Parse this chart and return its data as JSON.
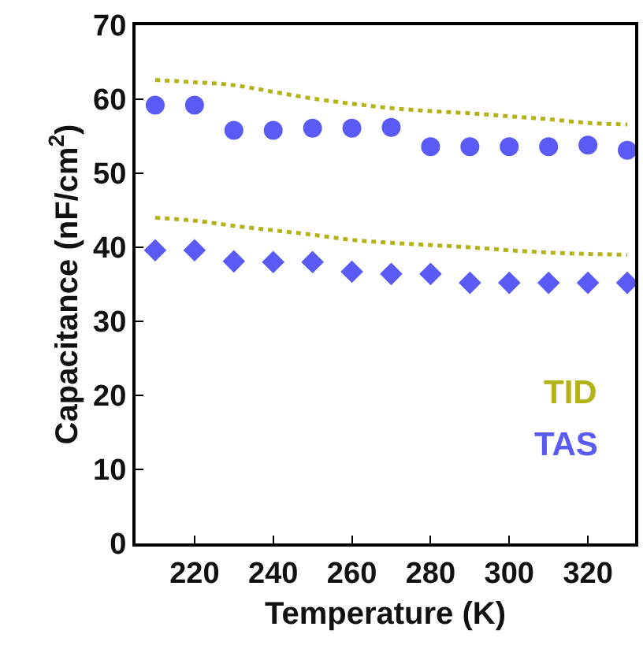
{
  "chart_data": {
    "type": "scatter",
    "xlabel": "Temperature (K)",
    "ylabel": "Capacitance (nF/cm$^{2}$)",
    "x": [
      210,
      220,
      230,
      240,
      250,
      260,
      270,
      280,
      290,
      300,
      310,
      320,
      330
    ],
    "series": [
      {
        "name": "TID",
        "type": "line",
        "line_style": "dotted",
        "marker": "none",
        "color": "#b3b318",
        "values": [
          62.6,
          62.3,
          61.9,
          61.0,
          60.1,
          59.4,
          58.8,
          58.4,
          58.1,
          57.7,
          57.3,
          56.8,
          56.6
        ]
      },
      {
        "type": "line",
        "line_style": "dotted",
        "marker": "none",
        "color": "#b3b318",
        "values": [
          44.0,
          43.6,
          42.9,
          42.3,
          41.7,
          41.0,
          40.6,
          40.3,
          40.0,
          39.6,
          39.3,
          39.1,
          39.0
        ]
      },
      {
        "name": "TAS",
        "marker": "circle",
        "color": "#5a5af5",
        "values": [
          59.2,
          59.2,
          55.8,
          55.8,
          56.1,
          56.1,
          56.2,
          53.6,
          53.6,
          53.6,
          53.6,
          53.8,
          53.1
        ]
      },
      {
        "marker": "diamond",
        "color": "#5a5af5",
        "values": [
          39.6,
          39.6,
          38.1,
          38.0,
          38.0,
          36.7,
          36.4,
          36.4,
          35.2,
          35.2,
          35.2,
          35.2,
          35.2
        ]
      }
    ],
    "xlim": [
      205,
      332
    ],
    "xticks": [
      220,
      240,
      260,
      280,
      300,
      320
    ],
    "ylim": [
      0,
      70
    ],
    "yticks": [
      0,
      10,
      20,
      30,
      40,
      50,
      60,
      70
    ]
  }
}
